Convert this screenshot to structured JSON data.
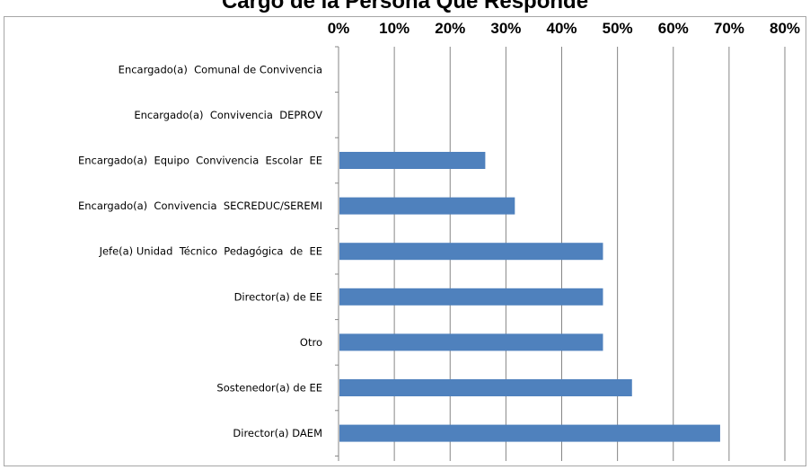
{
  "chart_data": {
    "type": "bar",
    "orientation": "horizontal",
    "title": "Cargo de la Persona Que Responde",
    "categories": [
      "Encargado(a)  Comunal de Convivencia",
      "Encargado(a)  Convivencia  DEPROV",
      "Encargado(a)  Equipo  Convivencia  Escolar  EE",
      "Encargado(a)  Convivencia  SECREDUC/SEREMI",
      "Jefe(a) Unidad  Técnico  Pedagógica  de  EE",
      "Director(a) de EE",
      "Otro",
      "Sostenedor(a) de EE",
      "Director(a) DAEM"
    ],
    "values": [
      0,
      0,
      26.3,
      31.6,
      47.4,
      47.4,
      47.4,
      52.6,
      68.4
    ],
    "xlim": [
      0,
      80
    ],
    "xticks": [
      "0%",
      "10%",
      "20%",
      "30%",
      "40%",
      "50%",
      "60%",
      "70%",
      "80%"
    ],
    "axis_position": "top",
    "grid": true,
    "bar_color": "#4f81bd",
    "gridline_color": "#868686"
  }
}
